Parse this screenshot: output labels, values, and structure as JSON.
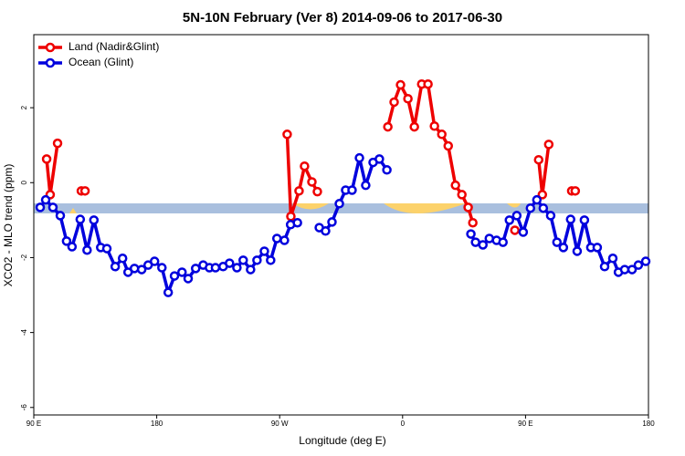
{
  "chart_data": {
    "type": "line",
    "title": "5N-10N February (Ver 8)   2014-09-06 to 2017-06-30",
    "xlabel": "Longitude (deg E)",
    "ylabel": "XCO2 - MLO trend (ppm)",
    "xlim": [
      90,
      540
    ],
    "ylim": [
      -6.2,
      3.95
    ],
    "xticks": [
      {
        "value": 90,
        "label": "90 E"
      },
      {
        "value": 180,
        "label": "180"
      },
      {
        "value": 270,
        "label": "90 W"
      },
      {
        "value": 360,
        "label": "0"
      },
      {
        "value": 450,
        "label": "90 E"
      },
      {
        "value": 540,
        "label": "180"
      }
    ],
    "yticks": [
      -6,
      -4,
      -2,
      0,
      2
    ],
    "legend": "upper left",
    "series": [
      {
        "name": "Land (Nadir&Glint)",
        "color": "#ee0000",
        "x": [
          99.4,
          102,
          107.4,
          null,
          124.8,
          127.5,
          null,
          275.5,
          278.2,
          284.2,
          288.2,
          293.6,
          297.6,
          null,
          349.2,
          353.8,
          358.5,
          363.9,
          368.6,
          374,
          378.6,
          383.3,
          388.7,
          393.4,
          398.7,
          403.4,
          408,
          411.4,
          null,
          442.2,
          null,
          459.6,
          462.3,
          467,
          null,
          483.8,
          486.4
        ],
        "values": [
          0.63,
          -0.32,
          1.05,
          null,
          -0.22,
          -0.22,
          null,
          1.29,
          -0.9,
          -0.22,
          0.44,
          0.02,
          -0.24,
          null,
          1.49,
          2.15,
          2.61,
          2.24,
          1.49,
          2.63,
          2.63,
          1.51,
          1.29,
          0.98,
          -0.07,
          -0.32,
          -0.66,
          -1.07,
          null,
          -1.27,
          null,
          0.61,
          -0.32,
          1.02,
          null,
          -0.22,
          -0.22
        ]
      },
      {
        "name": "Ocean (Glint)",
        "color": "#0000dd",
        "x": [
          94.7,
          98.7,
          104,
          109.4,
          114,
          118,
          124,
          129,
          134,
          139,
          143.5,
          149.6,
          155,
          159,
          163.7,
          169,
          173.7,
          178.4,
          183.8,
          188.4,
          193,
          198.5,
          203,
          208.5,
          214,
          218.6,
          223,
          228.6,
          233.3,
          238.7,
          243.3,
          248.7,
          253.4,
          258.8,
          263.4,
          268,
          273.5,
          278,
          283,
          null,
          299,
          303.6,
          308.3,
          313.7,
          318.3,
          323,
          328.4,
          333,
          338.4,
          343,
          348.5,
          null,
          410,
          413.4,
          418.8,
          423.5,
          428.8,
          433.5,
          438.2,
          443.6,
          448.3,
          453.6,
          458.3,
          463,
          468.4,
          473,
          477.7,
          483,
          487.8,
          493.1,
          497.8,
          502.5,
          507.9,
          513.9,
          518,
          522.6,
          528,
          532.6,
          538
        ],
        "values": [
          -0.66,
          -0.46,
          -0.66,
          -0.88,
          -1.56,
          -1.71,
          -0.98,
          -1.8,
          -1.0,
          -1.73,
          -1.76,
          -2.24,
          -2.02,
          -2.39,
          -2.29,
          -2.32,
          -2.2,
          -2.1,
          -2.27,
          -2.93,
          -2.49,
          -2.39,
          -2.56,
          -2.29,
          -2.2,
          -2.27,
          -2.27,
          -2.24,
          -2.15,
          -2.27,
          -2.07,
          -2.32,
          -2.07,
          -1.83,
          -2.07,
          -1.49,
          -1.54,
          -1.12,
          -1.07,
          null,
          -1.2,
          -1.29,
          -1.05,
          -0.56,
          -0.2,
          -0.2,
          0.66,
          -0.07,
          0.54,
          0.63,
          0.34,
          null,
          -1.37,
          -1.59,
          -1.66,
          -1.49,
          -1.54,
          -1.59,
          -1.0,
          -0.88,
          -1.32,
          -0.68,
          -0.46,
          -0.68,
          -0.88,
          -1.59,
          -1.73,
          -0.98,
          -1.83,
          -1.0,
          -1.73,
          -1.73,
          -2.24,
          -2.02,
          -2.39,
          -2.32,
          -2.32,
          -2.2,
          -2.1
        ]
      }
    ]
  }
}
